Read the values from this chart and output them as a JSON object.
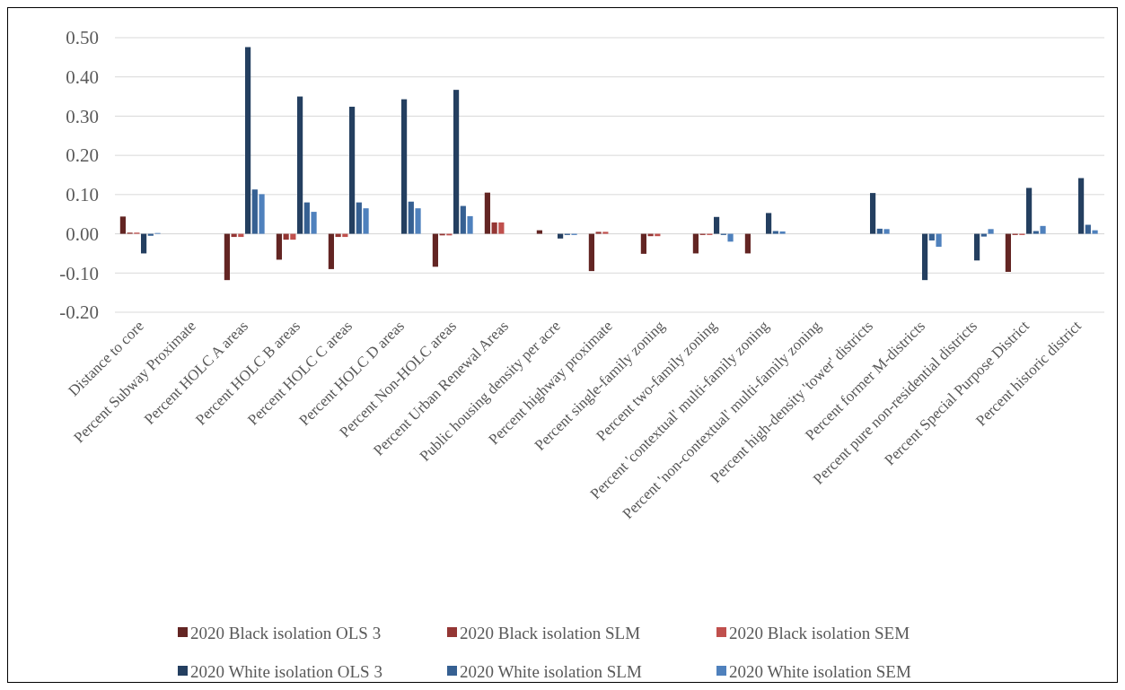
{
  "chart_data": {
    "type": "bar",
    "categories": [
      "Distance to core",
      "Percent Subway Proximate",
      "Percent HOLC A areas",
      "Percent HOLC B areas",
      "Percent HOLC C areas",
      "Percent HOLC D areas",
      "Percent Non-HOLC areas",
      "Percent Urban Renewal Areas",
      "Public housing density per acre",
      "Percent highway proximate",
      "Percent single-family zoning",
      "Percent two-family zoning",
      "Percent 'contextual' multi-family zoning",
      "Percent 'non-contextual' multi-family zoning",
      "Percent high-density 'tower' districts",
      "Percent former M-districts",
      "Percent pure non-residential districts",
      "Percent Special Purpose District",
      "Percent historic district"
    ],
    "series": [
      {
        "name": "2020 Black isolation OLS 3",
        "color": "#632523",
        "values": [
          0.044,
          null,
          -0.118,
          -0.066,
          -0.09,
          null,
          -0.084,
          0.105,
          0.009,
          -0.095,
          -0.051,
          -0.05,
          -0.05,
          null,
          null,
          null,
          null,
          -0.097,
          null
        ]
      },
      {
        "name": "2020 Black isolation SLM",
        "color": "#943634",
        "values": [
          0.003,
          null,
          -0.008,
          -0.015,
          -0.008,
          null,
          -0.004,
          0.029,
          null,
          0.005,
          -0.006,
          -0.003,
          null,
          null,
          null,
          null,
          null,
          -0.003,
          null
        ]
      },
      {
        "name": "2020 Black isolation SEM",
        "color": "#c0504d",
        "values": [
          0.003,
          null,
          -0.008,
          -0.015,
          -0.008,
          null,
          -0.004,
          0.029,
          null,
          0.005,
          -0.006,
          -0.003,
          null,
          null,
          null,
          null,
          null,
          -0.003,
          null
        ]
      },
      {
        "name": "2020 White isolation OLS 3",
        "color": "#243f60",
        "values": [
          -0.05,
          null,
          0.476,
          0.35,
          0.324,
          0.343,
          0.367,
          null,
          -0.012,
          null,
          null,
          0.043,
          0.053,
          null,
          0.104,
          -0.118,
          -0.068,
          0.117,
          0.142
        ]
      },
      {
        "name": "2020 White isolation SLM",
        "color": "#366092",
        "values": [
          -0.005,
          null,
          0.113,
          0.08,
          0.08,
          0.082,
          0.071,
          null,
          -0.003,
          null,
          null,
          -0.003,
          0.007,
          null,
          0.013,
          -0.017,
          -0.007,
          0.007,
          0.023
        ]
      },
      {
        "name": "2020 White isolation SEM",
        "color": "#4f81bd",
        "values": [
          0.002,
          null,
          0.101,
          0.056,
          0.065,
          0.065,
          0.045,
          null,
          -0.003,
          null,
          null,
          -0.02,
          0.006,
          null,
          0.012,
          -0.033,
          0.012,
          0.02,
          0.009
        ]
      }
    ],
    "ylim": [
      -0.2,
      0.5
    ],
    "yticks": [
      {
        "value": -0.2,
        "label": "-0.20"
      },
      {
        "value": -0.1,
        "label": "-0.10"
      },
      {
        "value": 0,
        "label": "0.00"
      },
      {
        "value": 0.1,
        "label": "0.10"
      },
      {
        "value": 0.2,
        "label": "0.20"
      },
      {
        "value": 0.3,
        "label": "0.30"
      },
      {
        "value": 0.4,
        "label": "0.40"
      },
      {
        "value": 0.5,
        "label": "0.50"
      }
    ],
    "grid": "y",
    "legend": "bottom"
  }
}
